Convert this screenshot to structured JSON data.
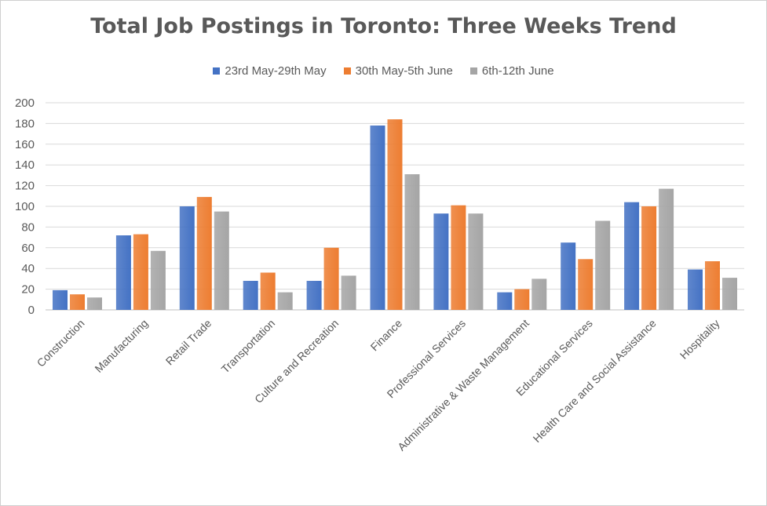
{
  "chart_data": {
    "type": "bar",
    "title": "Total Job Postings in Toronto: Three Weeks Trend",
    "categories": [
      "Construction",
      "Manufacturing",
      "Retail Trade",
      "Transportation",
      "Culture and Recreation",
      "Finance",
      "Professional Services",
      "Administrative & Waste Management",
      "Educational Services",
      "Health Care and Social Assistance",
      "Hospitality"
    ],
    "series": [
      {
        "name": "23rd May-29th May",
        "color": "#4472C4",
        "values": [
          19,
          72,
          100,
          28,
          28,
          178,
          93,
          17,
          65,
          104,
          39
        ]
      },
      {
        "name": "30th May-5th June",
        "color": "#ED7D31",
        "values": [
          15,
          73,
          109,
          36,
          60,
          184,
          101,
          20,
          49,
          100,
          47
        ]
      },
      {
        "name": "6th-12th June",
        "color": "#A5A5A5",
        "values": [
          12,
          57,
          95,
          17,
          33,
          131,
          93,
          30,
          86,
          117,
          31
        ]
      }
    ],
    "ylim": [
      0,
      200
    ],
    "yticks": [
      0,
      20,
      40,
      60,
      80,
      100,
      120,
      140,
      160,
      180,
      200
    ],
    "grid": true,
    "legend_position": "top"
  }
}
